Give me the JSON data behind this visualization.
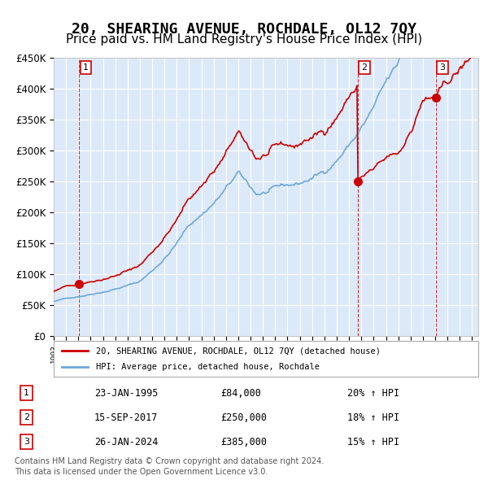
{
  "title": "20, SHEARING AVENUE, ROCHDALE, OL12 7QY",
  "subtitle": "Price paid vs. HM Land Registry's House Price Index (HPI)",
  "title_fontsize": 13,
  "subtitle_fontsize": 11,
  "background_color": "#dce9f8",
  "plot_bg_color": "#dce9f8",
  "hpi_color": "#6fa8d8",
  "price_color": "#cc0000",
  "sale_marker_color": "#cc0000",
  "vline_color": "#cc0000",
  "ylim": [
    0,
    450000
  ],
  "ytick_step": 50000,
  "xlabel_fontsize": 8,
  "ylabel_fontsize": 9,
  "legend_label_price": "20, SHEARING AVENUE, ROCHDALE, OL12 7QY (detached house)",
  "legend_label_hpi": "HPI: Average price, detached house, Rochdale",
  "sale_points": [
    {
      "label": "1",
      "date_num": 1995.07,
      "price": 84000,
      "date_str": "23-JAN-1995",
      "price_str": "£84,000",
      "pct": "20%",
      "dir": "↑"
    },
    {
      "label": "2",
      "date_num": 2017.71,
      "price": 250000,
      "date_str": "15-SEP-2017",
      "price_str": "£250,000",
      "pct": "18%",
      "dir": "↑"
    },
    {
      "label": "3",
      "date_num": 2024.07,
      "price": 385000,
      "date_str": "26-JAN-2024",
      "price_str": "£385,000",
      "pct": "15%",
      "dir": "↑"
    }
  ],
  "footer_line1": "Contains HM Land Registry data © Crown copyright and database right 2024.",
  "footer_line2": "This data is licensed under the Open Government Licence v3.0."
}
